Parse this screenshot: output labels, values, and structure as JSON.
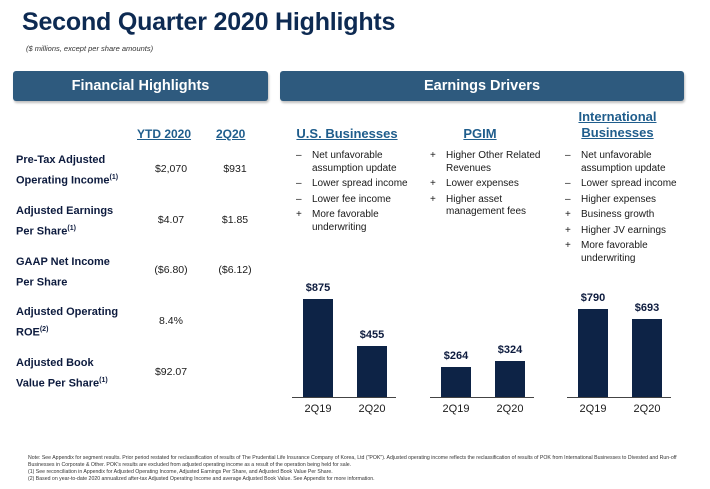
{
  "title": "Second Quarter 2020 Highlights",
  "subtitle": "($ millions, except per share amounts)",
  "financial_highlights": {
    "banner": "Financial Highlights",
    "col_ytd": "YTD 2020",
    "col_q2": "2Q20",
    "rows": [
      {
        "label_line1": "Pre-Tax Adjusted",
        "label_line2": "Operating Income",
        "sup": "(1)",
        "ytd": "$2,070",
        "q2": "$931"
      },
      {
        "label_line1": "Adjusted Earnings",
        "label_line2": "Per Share",
        "sup": "(1)",
        "ytd": "$4.07",
        "q2": "$1.85"
      },
      {
        "label_line1": "GAAP Net Income",
        "label_line2": "Per Share",
        "sup": "",
        "ytd": "($6.80)",
        "q2": "($6.12)"
      },
      {
        "label_line1": "Adjusted Operating",
        "label_line2": "ROE",
        "sup": "(2)",
        "ytd": "8.4%",
        "q2": ""
      },
      {
        "label_line1": "Adjusted Book",
        "label_line2": "Value Per Share",
        "sup": "(1)",
        "ytd": "$92.07",
        "q2": ""
      }
    ]
  },
  "earnings_drivers": {
    "banner": "Earnings Drivers",
    "columns": [
      {
        "heading": "U.S. Businesses",
        "items": [
          {
            "sign": "–",
            "text": "Net unfavorable assumption update"
          },
          {
            "sign": "–",
            "text": "Lower spread income"
          },
          {
            "sign": "–",
            "text": "Lower fee income"
          },
          {
            "sign": "+",
            "text": "More favorable underwriting"
          }
        ]
      },
      {
        "heading": "PGIM",
        "items": [
          {
            "sign": "+",
            "text": "Higher Other Related Revenues"
          },
          {
            "sign": "+",
            "text": "Lower expenses"
          },
          {
            "sign": "+",
            "text": "Higher asset management fees"
          }
        ]
      },
      {
        "heading_line1": "International",
        "heading_line2": "Businesses",
        "items": [
          {
            "sign": "–",
            "text": "Net unfavorable assumption update"
          },
          {
            "sign": "–",
            "text": "Lower spread income"
          },
          {
            "sign": "–",
            "text": "Higher expenses"
          },
          {
            "sign": "+",
            "text": "Business growth"
          },
          {
            "sign": "+",
            "text": "Higher JV earnings"
          },
          {
            "sign": "+",
            "text": "More favorable underwriting"
          }
        ]
      }
    ]
  },
  "chart_data": [
    {
      "type": "bar",
      "categories": [
        "2Q19",
        "2Q20"
      ],
      "values": [
        875,
        455
      ],
      "labels": [
        "$875",
        "$455"
      ]
    },
    {
      "type": "bar",
      "categories": [
        "2Q19",
        "2Q20"
      ],
      "values": [
        264,
        324
      ],
      "labels": [
        "$264",
        "$324"
      ]
    },
    {
      "type": "bar",
      "categories": [
        "2Q19",
        "2Q20"
      ],
      "values": [
        790,
        693
      ],
      "labels": [
        "$790",
        "$693"
      ]
    }
  ],
  "colors": {
    "bar": "#0d2346",
    "banner": "#2e5a7e",
    "heading": "#1f5d8c"
  },
  "footnotes": [
    "Note: See Appendix for segment results. Prior period restated for reclassification of results of The Prudential Life Insurance Company of Korea, Ltd (\"POK\"). Adjusted operating income reflects the reclassification of results of POK from International Businesses to Divested and Run-off Businesses in Corporate & Other. POK's results are excluded from adjusted operating income as a result of the operation being held for sale.",
    "(1)    See reconciliation in Appendix for Adjusted Operating Income, Adjusted Earnings Per Share, and Adjusted Book Value Per Share.",
    "(2)    Based on year-to-date 2020 annualized after-tax Adjusted Operating Income and average Adjusted Book Value. See Appendix for more information."
  ]
}
